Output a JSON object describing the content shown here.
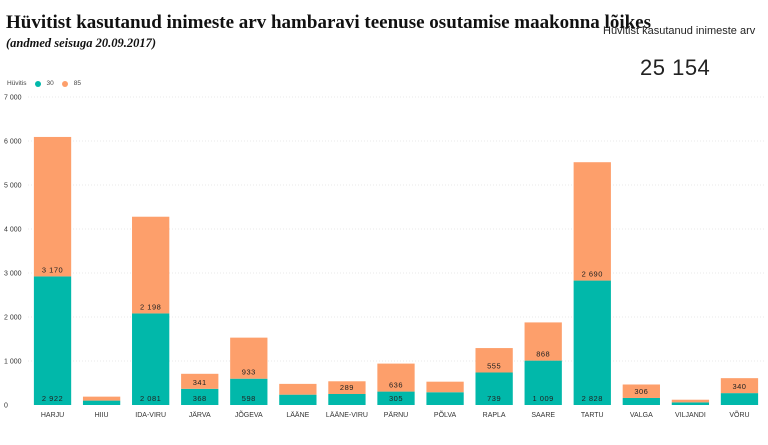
{
  "title": "Hüvitist kasutanud inimeste arv hambaravi teenuse osutamise maakonna lõikes",
  "subtitle": "(andmed seisuga 20.09.2017)",
  "kpi": {
    "label": "Hüvitist kasutanud inimeste arv",
    "value": "25 154"
  },
  "legend": {
    "title": "Hüvitis",
    "items": [
      "30",
      "85"
    ]
  },
  "colors": {
    "series_30": "#01b8aa",
    "series_85": "#fd9f6b",
    "grid": "#e8e8e8",
    "axis_text": "#333333"
  },
  "chart_data": {
    "type": "bar",
    "stacked": true,
    "categories": [
      "HARJU",
      "HIIU",
      "IDA-VIRU",
      "JÄRVA",
      "JÕGEVA",
      "LÄÄNE",
      "LÄÄNE-VIRU",
      "PÄRNU",
      "PÕLVA",
      "RAPLA",
      "SAARE",
      "TARTU",
      "VALGA",
      "VILJANDI",
      "VÕRU"
    ],
    "series": [
      {
        "name": "30",
        "values": [
          2922,
          100,
          2081,
          368,
          598,
          235,
          250,
          305,
          290,
          739,
          1009,
          2828,
          160,
          60,
          270
        ],
        "labels": [
          "2 922",
          "",
          "2 081",
          "368",
          "598",
          "",
          "",
          "305",
          "",
          "739",
          "1 009",
          "2 828",
          "",
          "",
          ""
        ]
      },
      {
        "name": "85",
        "values": [
          3170,
          90,
          2198,
          341,
          933,
          245,
          289,
          636,
          240,
          555,
          868,
          2690,
          306,
          60,
          340
        ],
        "labels": [
          "3 170",
          "",
          "2 198",
          "341",
          "933",
          "",
          "289",
          "636",
          "",
          "555",
          "868",
          "2 690",
          "306",
          "",
          "340"
        ]
      }
    ],
    "y_ticks": [
      0,
      1000,
      2000,
      3000,
      4000,
      5000,
      6000,
      7000
    ],
    "y_tick_labels": [
      "0",
      "1 000",
      "2 000",
      "3 000",
      "4 000",
      "5 000",
      "6 000",
      "7 000"
    ],
    "ylim": [
      0,
      7000
    ],
    "grid": true,
    "legend_position": "top-left"
  }
}
